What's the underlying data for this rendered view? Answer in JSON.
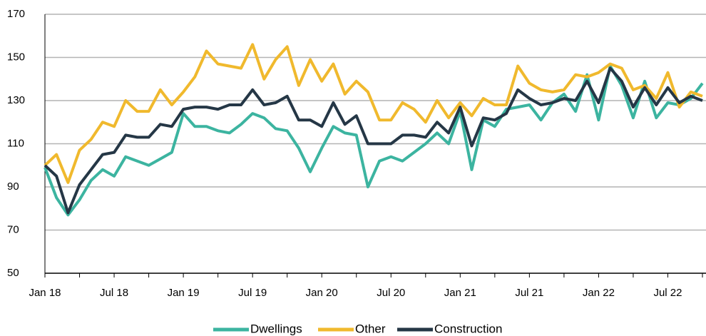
{
  "chart_data": {
    "type": "line",
    "categories": [
      "Jan 18",
      null,
      null,
      null,
      null,
      null,
      "Jul 18",
      null,
      null,
      null,
      null,
      null,
      "Jan 19",
      null,
      null,
      null,
      null,
      null,
      "Jul 19",
      null,
      null,
      null,
      null,
      null,
      "Jan 20",
      null,
      null,
      null,
      null,
      null,
      "Jul 20",
      null,
      null,
      null,
      null,
      null,
      "Jan 21",
      null,
      null,
      null,
      null,
      null,
      "Jul 21",
      null,
      null,
      null,
      null,
      null,
      "Jan 22",
      null,
      null,
      null,
      null,
      null,
      "Jul 22",
      null,
      null,
      null
    ],
    "series": [
      {
        "name": "Dwellings",
        "color": "#3cb4a0",
        "values": [
          99,
          85,
          77,
          84,
          93,
          98,
          95,
          104,
          102,
          100,
          103,
          106,
          124,
          118,
          118,
          116,
          115,
          119,
          124,
          122,
          117,
          116,
          108,
          97,
          108,
          118,
          115,
          114,
          90,
          102,
          104,
          102,
          106,
          110,
          115,
          110,
          125,
          98,
          121,
          118,
          126,
          127,
          128,
          121,
          129,
          133,
          125,
          142,
          121,
          146,
          137,
          122,
          139,
          122,
          129,
          128,
          131,
          138
        ]
      },
      {
        "name": "Other",
        "color": "#f0b92d",
        "values": [
          100,
          105,
          92,
          107,
          112,
          120,
          118,
          130,
          125,
          125,
          135,
          128,
          134,
          141,
          153,
          147,
          146,
          145,
          156,
          140,
          149,
          155,
          137,
          149,
          139,
          147,
          133,
          139,
          134,
          121,
          121,
          129,
          126,
          120,
          130,
          122,
          129,
          123,
          131,
          128,
          128,
          146,
          138,
          135,
          134,
          135,
          142,
          141,
          143,
          147,
          145,
          135,
          137,
          131,
          143,
          127,
          134,
          132
        ]
      },
      {
        "name": "Construction",
        "color": "#253746",
        "values": [
          100,
          95,
          78,
          91,
          98,
          105,
          106,
          114,
          113,
          113,
          119,
          118,
          126,
          127,
          127,
          126,
          128,
          128,
          135,
          128,
          129,
          132,
          121,
          121,
          118,
          129,
          119,
          123,
          110,
          110,
          110,
          114,
          114,
          113,
          120,
          115,
          127,
          109,
          122,
          121,
          124,
          135,
          131,
          128,
          129,
          131,
          130,
          139,
          129,
          145,
          139,
          127,
          136,
          128,
          136,
          129,
          132,
          130
        ]
      }
    ],
    "ylim": [
      50,
      170
    ],
    "yticks": [
      50,
      70,
      90,
      110,
      130,
      150,
      170
    ],
    "grid": true,
    "legend": "bottom"
  }
}
